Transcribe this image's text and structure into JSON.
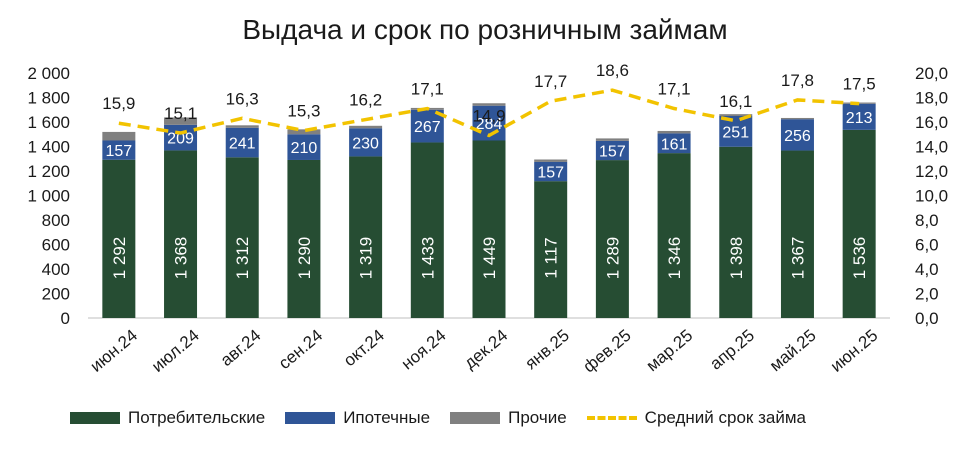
{
  "chart_data": {
    "type": "bar",
    "title": "Выдача и срок по розничным займам",
    "categories": [
      "июн.24",
      "июл.24",
      "авг.24",
      "сен.24",
      "окт.24",
      "ноя.24",
      "дек.24",
      "янв.25",
      "фев.25",
      "мар.25",
      "апр.25",
      "май.25",
      "июн.25"
    ],
    "series": [
      {
        "name": "Потребительские",
        "color": "#264D33",
        "values": [
          1292,
          1368,
          1312,
          1290,
          1319,
          1433,
          1449,
          1117,
          1289,
          1346,
          1398,
          1367,
          1536
        ],
        "labels": [
          "1 292",
          "1 368",
          "1 312",
          "1 290",
          "1 319",
          "1 433",
          "1 449",
          "1 117",
          "1 289",
          "1 346",
          "1 398",
          "1 367",
          "1 536"
        ]
      },
      {
        "name": "Ипотечные",
        "color": "#2F5597",
        "values": [
          157,
          209,
          241,
          210,
          230,
          267,
          284,
          157,
          157,
          161,
          251,
          256,
          213
        ],
        "labels": [
          "157",
          "209",
          "241",
          "210",
          "230",
          "267",
          "284",
          "157",
          "157",
          "161",
          "251",
          "256",
          "213"
        ]
      },
      {
        "name": "Прочие",
        "color": "#808080",
        "values": [
          70,
          60,
          20,
          40,
          20,
          15,
          20,
          20,
          20,
          20,
          15,
          10,
          10
        ]
      },
      {
        "name": "Средний срок займа",
        "type": "line",
        "axis": "right",
        "color": "#F2C300",
        "values": [
          15.9,
          15.1,
          16.3,
          15.3,
          16.2,
          17.1,
          14.9,
          17.7,
          18.6,
          17.1,
          16.1,
          17.8,
          17.5
        ],
        "labels": [
          "15,9",
          "15,1",
          "16,3",
          "15,3",
          "16,2",
          "17,1",
          "14,9",
          "17,7",
          "18,6",
          "17,1",
          "16,1",
          "17,8",
          "17,5"
        ]
      }
    ],
    "ylim": [
      0,
      2000
    ],
    "y2lim": [
      0,
      20
    ],
    "yticks": [
      "0",
      "200",
      "400",
      "600",
      "800",
      "1 000",
      "1 200",
      "1 400",
      "1 600",
      "1 800",
      "2 000"
    ],
    "y2ticks": [
      "0,0",
      "2,0",
      "4,0",
      "6,0",
      "8,0",
      "10,0",
      "12,0",
      "14,0",
      "16,0",
      "18,0",
      "20,0"
    ],
    "grid": false,
    "legend_position": "bottom"
  }
}
